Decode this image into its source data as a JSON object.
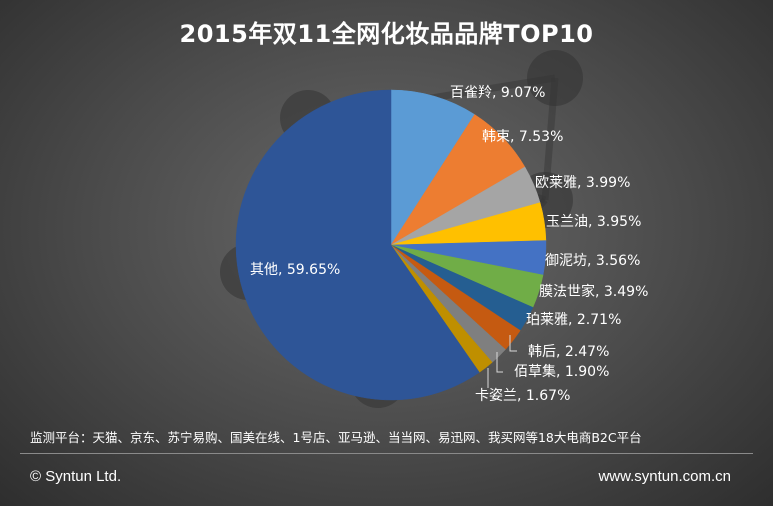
{
  "chart_data": {
    "type": "pie",
    "title": "2015年双11全网化妆品品牌TOP10",
    "slices": [
      {
        "label": "百雀羚",
        "value": 9.07,
        "value_label": "9.07%",
        "color": "#5b9bd5"
      },
      {
        "label": "韩束",
        "value": 7.53,
        "value_label": "7.53%",
        "color": "#ed7d31"
      },
      {
        "label": "欧莱雅",
        "value": 3.99,
        "value_label": "3.99%",
        "color": "#a5a5a5"
      },
      {
        "label": "玉兰油",
        "value": 3.95,
        "value_label": "3.95%",
        "color": "#ffc000"
      },
      {
        "label": "御泥坊",
        "value": 3.56,
        "value_label": "3.56%",
        "color": "#4472c4"
      },
      {
        "label": "膜法世家",
        "value": 3.49,
        "value_label": "3.49%",
        "color": "#70ad47"
      },
      {
        "label": "珀莱雅",
        "value": 2.71,
        "value_label": "2.71%",
        "color": "#255e91"
      },
      {
        "label": "韩后",
        "value": 2.47,
        "value_label": "2.47%",
        "color": "#c55a11"
      },
      {
        "label": "佰草集",
        "value": 1.9,
        "value_label": "1.90%",
        "color": "#7f7f7f"
      },
      {
        "label": "卡姿兰",
        "value": 1.67,
        "value_label": "1.67%",
        "color": "#bf8f00"
      },
      {
        "label": "其他",
        "value": 59.65,
        "value_label": "59.65%",
        "color": "#2e5597"
      }
    ]
  },
  "note": "监测平台：天猫、京东、苏宁易购、国美在线、1号店、亚马逊、当当网、易迅网、我买网等18大电商B2C平台",
  "footer": {
    "copyright": "© Syntun Ltd.",
    "website": "www.syntun.com.cn"
  },
  "text_color": "#ffffff"
}
